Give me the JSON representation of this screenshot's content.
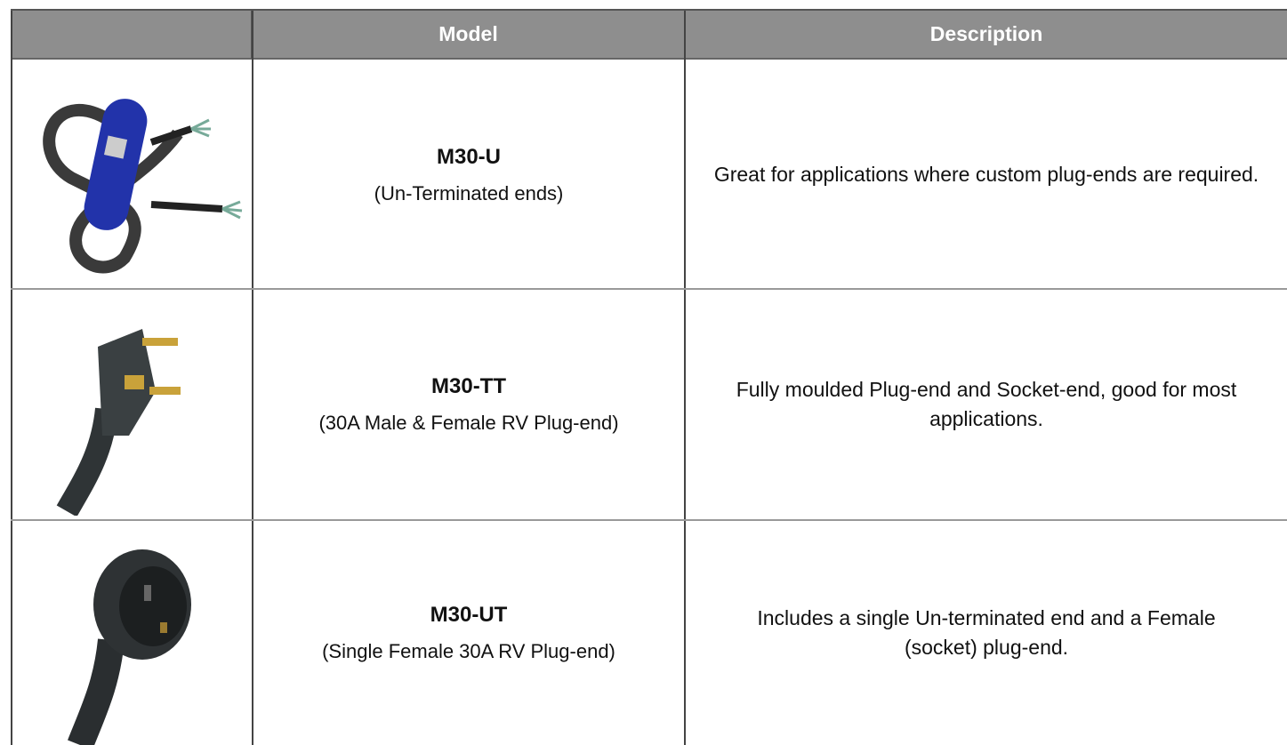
{
  "table": {
    "header": [
      "Model",
      "Description"
    ],
    "rows": [
      {
        "model": "M30-U",
        "model_note": "(Un-Terminated ends)",
        "description": "Great for applications where custom plug-ends are required."
      },
      {
        "model": "M30-TT",
        "model_note": "(30A Male & Female RV Plug-end)",
        "description": "Fully moulded Plug-end and Socket-end, good for most applications."
      },
      {
        "model": "M30-UT",
        "model_note": "(Single Female 30A RV Plug-end)",
        "description": "Includes a single Un-terminated end and a Female (socket) plug-end."
      }
    ]
  }
}
